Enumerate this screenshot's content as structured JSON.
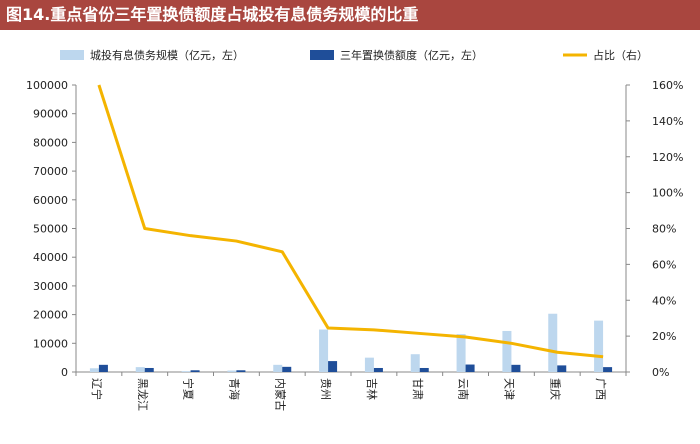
{
  "title": "图14.重点省份三年置换债额度占城投有息债务规模的比重",
  "chart_data": {
    "type": "bar",
    "categories": [
      "辽宁",
      "黑龙江",
      "宁夏",
      "青海",
      "内蒙古",
      "贵州",
      "吉林",
      "甘肃",
      "云南",
      "天津",
      "重庆",
      "广西"
    ],
    "series": [
      {
        "name": "城投有息债务规模（亿元，左）",
        "type": "bar",
        "axis": "left",
        "color": "#bdd7ee",
        "values": [
          1300,
          1700,
          300,
          500,
          2500,
          14800,
          5000,
          6200,
          13200,
          14300,
          20300,
          17900
        ]
      },
      {
        "name": "三年置换债额度（亿元，左）",
        "type": "bar",
        "axis": "left",
        "color": "#1f4e99",
        "values": [
          2500,
          1400,
          600,
          600,
          1800,
          3800,
          1400,
          1400,
          2600,
          2500,
          2300,
          1700
        ]
      },
      {
        "name": "占比（右）",
        "type": "line",
        "axis": "right",
        "color": "#f4b400",
        "values": [
          160,
          80,
          76,
          73,
          67,
          24.5,
          23.5,
          21.5,
          19.5,
          16,
          11,
          8.5
        ]
      }
    ],
    "left_axis": {
      "min": 0,
      "max": 100000,
      "step": 10000,
      "tick_labels": [
        "0",
        "10000",
        "20000",
        "30000",
        "40000",
        "50000",
        "60000",
        "70000",
        "80000",
        "90000",
        "100000"
      ]
    },
    "right_axis": {
      "min": 0,
      "max": 160,
      "step": 20,
      "tick_labels": [
        "0%",
        "20%",
        "40%",
        "60%",
        "80%",
        "100%",
        "120%",
        "140%",
        "160%"
      ]
    },
    "legend_position": "top",
    "grid": false
  }
}
